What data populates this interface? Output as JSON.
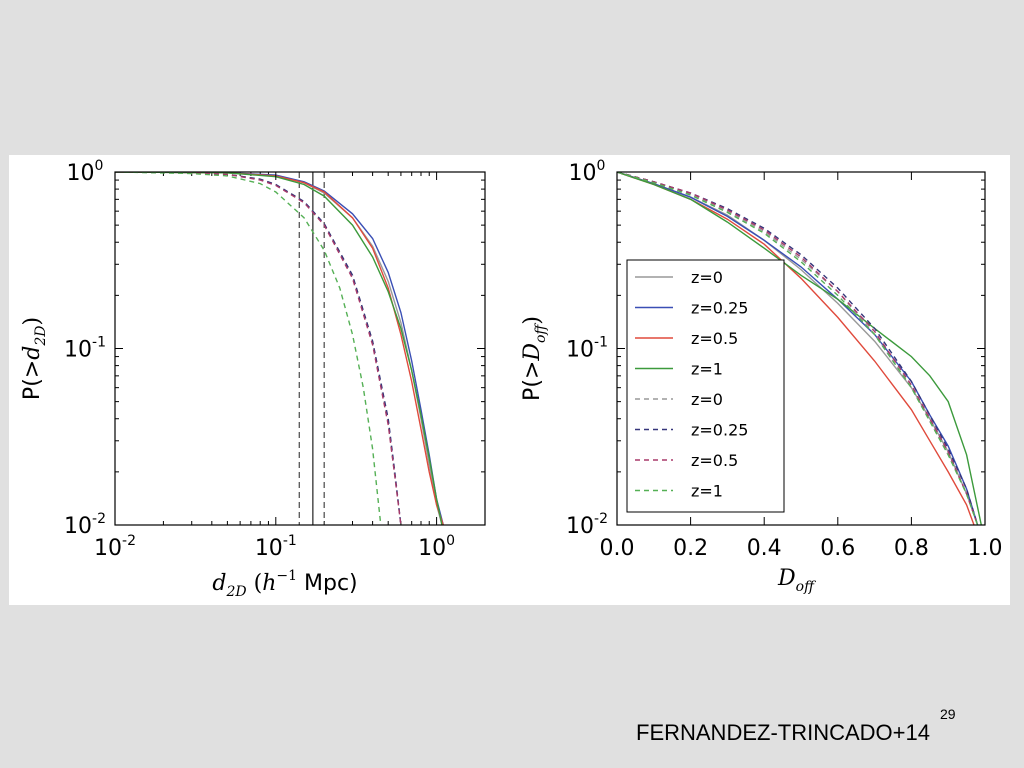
{
  "slide": {
    "citation": "FERNANDEZ-TRINCADO+14",
    "page_number": "29"
  },
  "chart_data": [
    {
      "type": "line",
      "xlabel": "d_2D (h^-1 Mpc)",
      "ylabel": "P(>d_2D)",
      "xscale": "log",
      "yscale": "log",
      "xlim": [
        0.01,
        2.0
      ],
      "ylim": [
        0.01,
        1.0
      ],
      "xticks": [
        {
          "value": 0.01,
          "base": "10",
          "exp": "-2"
        },
        {
          "value": 0.1,
          "base": "10",
          "exp": "-1"
        },
        {
          "value": 1.0,
          "base": "10",
          "exp": "0"
        }
      ],
      "yticks": [
        {
          "value": 0.01,
          "base": "10",
          "exp": "-2"
        },
        {
          "value": 0.1,
          "base": "10",
          "exp": "-1"
        },
        {
          "value": 1.0,
          "base": "10",
          "exp": "0"
        }
      ],
      "vlines": [
        {
          "x": 0.14,
          "style": "dashed",
          "color": "#555555"
        },
        {
          "x": 0.17,
          "style": "solid",
          "color": "#333333"
        },
        {
          "x": 0.2,
          "style": "dashed",
          "color": "#555555"
        }
      ],
      "series": [
        {
          "color": "#999999",
          "style": "solid",
          "x": [
            0.01,
            0.05,
            0.1,
            0.15,
            0.2,
            0.3,
            0.4,
            0.5,
            0.6,
            0.7,
            0.8,
            0.9,
            1.0,
            1.08
          ],
          "y": [
            1.0,
            0.99,
            0.95,
            0.87,
            0.76,
            0.55,
            0.38,
            0.24,
            0.14,
            0.075,
            0.04,
            0.022,
            0.013,
            0.01
          ]
        },
        {
          "color": "#3a4fb5",
          "style": "solid",
          "x": [
            0.01,
            0.05,
            0.1,
            0.15,
            0.2,
            0.3,
            0.4,
            0.5,
            0.6,
            0.7,
            0.8,
            0.9,
            1.0,
            1.1
          ],
          "y": [
            1.0,
            0.99,
            0.96,
            0.88,
            0.78,
            0.58,
            0.42,
            0.27,
            0.16,
            0.085,
            0.045,
            0.025,
            0.014,
            0.01
          ]
        },
        {
          "color": "#e04a3c",
          "style": "solid",
          "x": [
            0.01,
            0.05,
            0.1,
            0.15,
            0.2,
            0.3,
            0.4,
            0.5,
            0.6,
            0.7,
            0.8,
            0.9,
            1.0,
            1.1
          ],
          "y": [
            1.0,
            0.99,
            0.95,
            0.87,
            0.77,
            0.55,
            0.37,
            0.22,
            0.12,
            0.065,
            0.035,
            0.02,
            0.013,
            0.01
          ]
        },
        {
          "color": "#3c9a3c",
          "style": "solid",
          "x": [
            0.01,
            0.05,
            0.1,
            0.15,
            0.2,
            0.3,
            0.4,
            0.5,
            0.6,
            0.7,
            0.8,
            0.9,
            1.0,
            1.08
          ],
          "y": [
            1.0,
            0.99,
            0.94,
            0.85,
            0.73,
            0.5,
            0.33,
            0.21,
            0.13,
            0.075,
            0.042,
            0.024,
            0.014,
            0.01
          ]
        },
        {
          "color": "#999999",
          "style": "dashed",
          "x": [
            0.01,
            0.03,
            0.05,
            0.08,
            0.1,
            0.15,
            0.2,
            0.3,
            0.4,
            0.5,
            0.55,
            0.6
          ],
          "y": [
            1.0,
            0.99,
            0.97,
            0.91,
            0.85,
            0.68,
            0.51,
            0.26,
            0.11,
            0.038,
            0.019,
            0.01
          ]
        },
        {
          "color": "#35357a",
          "style": "dashed",
          "x": [
            0.01,
            0.03,
            0.05,
            0.08,
            0.1,
            0.15,
            0.2,
            0.3,
            0.4,
            0.5,
            0.55,
            0.6
          ],
          "y": [
            1.0,
            0.99,
            0.97,
            0.91,
            0.85,
            0.68,
            0.51,
            0.26,
            0.11,
            0.04,
            0.02,
            0.01
          ]
        },
        {
          "color": "#a83a6a",
          "style": "dashed",
          "x": [
            0.01,
            0.03,
            0.05,
            0.08,
            0.1,
            0.15,
            0.2,
            0.3,
            0.4,
            0.5,
            0.55,
            0.6
          ],
          "y": [
            1.0,
            0.99,
            0.97,
            0.9,
            0.84,
            0.67,
            0.5,
            0.25,
            0.105,
            0.037,
            0.019,
            0.01
          ]
        },
        {
          "color": "#55b055",
          "style": "dashed",
          "x": [
            0.01,
            0.03,
            0.05,
            0.08,
            0.1,
            0.15,
            0.2,
            0.25,
            0.3,
            0.35,
            0.4,
            0.45
          ],
          "y": [
            1.0,
            0.98,
            0.95,
            0.86,
            0.77,
            0.55,
            0.36,
            0.22,
            0.12,
            0.06,
            0.027,
            0.01
          ]
        }
      ]
    },
    {
      "type": "line",
      "xlabel": "D_off",
      "ylabel": "P(>D_off)",
      "xscale": "linear",
      "yscale": "log",
      "xlim": [
        0.0,
        1.0
      ],
      "ylim": [
        0.01,
        1.0
      ],
      "xticks": [
        {
          "value": 0.0,
          "text": "0.0"
        },
        {
          "value": 0.2,
          "text": "0.2"
        },
        {
          "value": 0.4,
          "text": "0.4"
        },
        {
          "value": 0.6,
          "text": "0.6"
        },
        {
          "value": 0.8,
          "text": "0.8"
        },
        {
          "value": 1.0,
          "text": "1.0"
        }
      ],
      "yticks": [
        {
          "value": 0.01,
          "base": "10",
          "exp": "-2"
        },
        {
          "value": 0.1,
          "base": "10",
          "exp": "-1"
        },
        {
          "value": 1.0,
          "base": "10",
          "exp": "0"
        }
      ],
      "legend": {
        "loc": "lower-left",
        "entries": [
          "z=0",
          "z=0.25",
          "z=0.5",
          "z=1",
          "z=0",
          "z=0.25",
          "z=0.5",
          "z=1"
        ]
      },
      "series": [
        {
          "label": "z=0",
          "color": "#999999",
          "style": "solid",
          "x": [
            0.0,
            0.1,
            0.2,
            0.3,
            0.4,
            0.5,
            0.6,
            0.7,
            0.8,
            0.85,
            0.9,
            0.95,
            0.98
          ],
          "y": [
            1.0,
            0.86,
            0.72,
            0.57,
            0.41,
            0.28,
            0.18,
            0.11,
            0.06,
            0.04,
            0.026,
            0.015,
            0.01
          ]
        },
        {
          "label": "z=0.25",
          "color": "#3a4fb5",
          "style": "solid",
          "x": [
            0.0,
            0.1,
            0.2,
            0.3,
            0.4,
            0.5,
            0.6,
            0.7,
            0.8,
            0.85,
            0.9,
            0.95,
            0.98
          ],
          "y": [
            1.0,
            0.86,
            0.72,
            0.56,
            0.41,
            0.29,
            0.19,
            0.12,
            0.065,
            0.042,
            0.028,
            0.016,
            0.01
          ]
        },
        {
          "label": "z=0.5",
          "color": "#e04a3c",
          "style": "solid",
          "x": [
            0.0,
            0.1,
            0.2,
            0.3,
            0.4,
            0.5,
            0.6,
            0.7,
            0.8,
            0.85,
            0.9,
            0.95,
            0.97
          ],
          "y": [
            1.0,
            0.85,
            0.7,
            0.54,
            0.39,
            0.25,
            0.15,
            0.085,
            0.045,
            0.03,
            0.02,
            0.013,
            0.01
          ]
        },
        {
          "label": "z=1",
          "color": "#3c9a3c",
          "style": "solid",
          "x": [
            0.0,
            0.1,
            0.2,
            0.3,
            0.4,
            0.5,
            0.6,
            0.7,
            0.8,
            0.85,
            0.9,
            0.95,
            0.99
          ],
          "y": [
            1.0,
            0.85,
            0.7,
            0.52,
            0.37,
            0.26,
            0.19,
            0.13,
            0.09,
            0.07,
            0.05,
            0.025,
            0.01
          ]
        },
        {
          "label": "z=0",
          "color": "#999999",
          "style": "dashed",
          "x": [
            0.0,
            0.1,
            0.2,
            0.3,
            0.4,
            0.5,
            0.6,
            0.7,
            0.8,
            0.9,
            0.95,
            0.98
          ],
          "y": [
            1.0,
            0.88,
            0.75,
            0.6,
            0.46,
            0.32,
            0.21,
            0.12,
            0.06,
            0.025,
            0.015,
            0.01
          ]
        },
        {
          "label": "z=0.25",
          "color": "#35357a",
          "style": "dashed",
          "x": [
            0.0,
            0.1,
            0.2,
            0.3,
            0.4,
            0.5,
            0.6,
            0.7,
            0.8,
            0.9,
            0.95,
            0.98
          ],
          "y": [
            1.0,
            0.88,
            0.76,
            0.62,
            0.48,
            0.34,
            0.22,
            0.13,
            0.065,
            0.027,
            0.016,
            0.01
          ]
        },
        {
          "label": "z=0.5",
          "color": "#a83a6a",
          "style": "dashed",
          "x": [
            0.0,
            0.1,
            0.2,
            0.3,
            0.4,
            0.5,
            0.6,
            0.7,
            0.8,
            0.9,
            0.95,
            0.98
          ],
          "y": [
            1.0,
            0.88,
            0.76,
            0.61,
            0.47,
            0.33,
            0.21,
            0.125,
            0.062,
            0.026,
            0.015,
            0.01
          ]
        },
        {
          "label": "z=1",
          "color": "#55b055",
          "style": "dashed",
          "x": [
            0.0,
            0.1,
            0.2,
            0.3,
            0.4,
            0.5,
            0.6,
            0.7,
            0.8,
            0.9,
            0.95,
            0.98
          ],
          "y": [
            1.0,
            0.87,
            0.74,
            0.59,
            0.45,
            0.31,
            0.2,
            0.12,
            0.06,
            0.025,
            0.015,
            0.01
          ]
        }
      ]
    }
  ]
}
